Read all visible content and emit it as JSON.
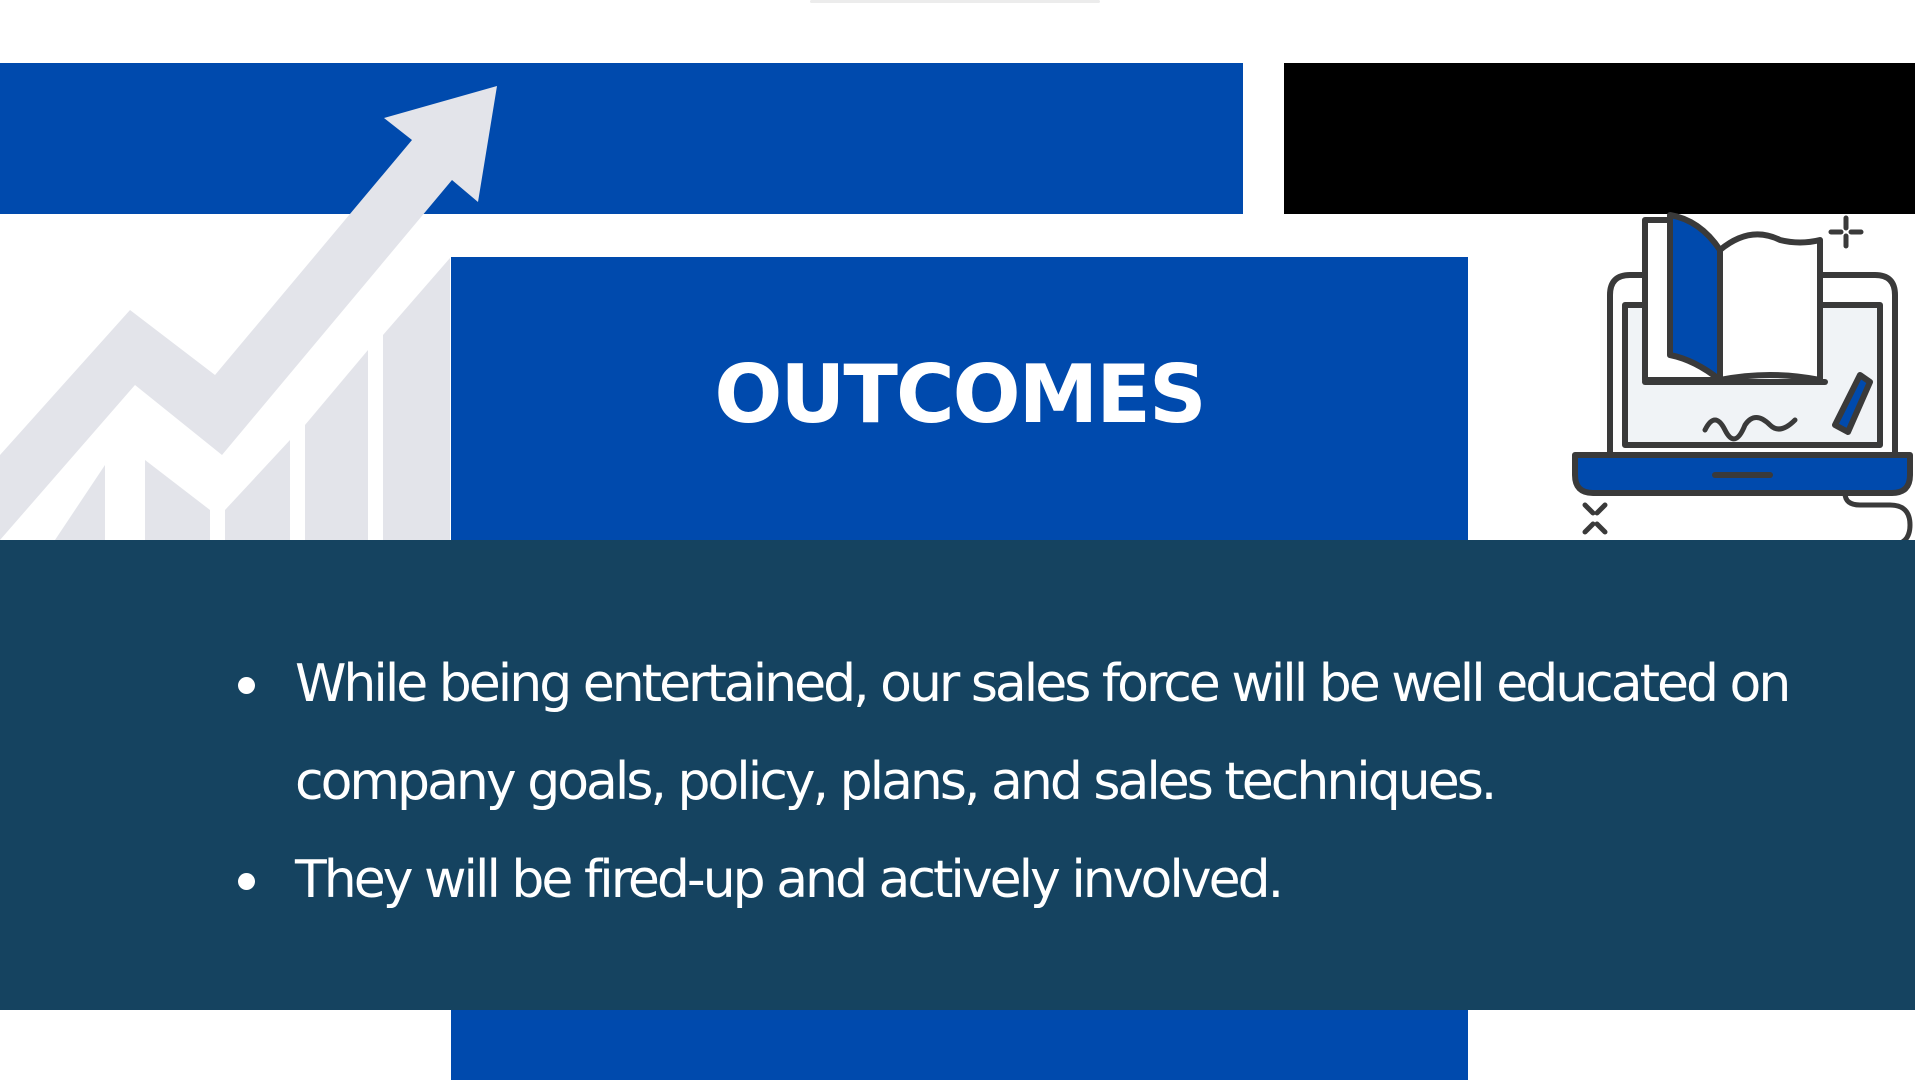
{
  "slide": {
    "title": "OUTCOMES",
    "bullets": [
      "While being entertained, our sales force will be well educated on company goals, policy, plans, and sales techniques.",
      "They will be fired-up and actively involved."
    ]
  },
  "icons": {
    "left": "growth-chart-arrow-icon",
    "right": "laptop-book-elearning-icon"
  },
  "colors": {
    "primary_blue": "#004aad",
    "dark_navy": "#154360",
    "black": "#000000",
    "graphic_gray": "#e3e4ea",
    "text": "#ffffff"
  }
}
